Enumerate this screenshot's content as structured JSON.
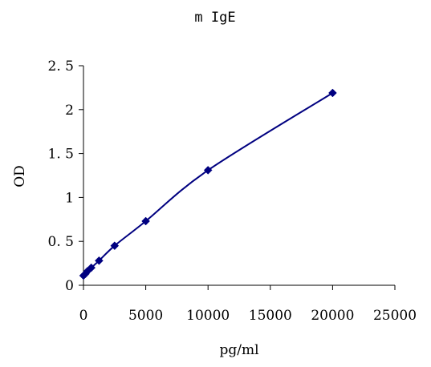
{
  "chart_data": {
    "type": "scatter",
    "title": "m IgE",
    "xlabel": "pg/ml",
    "ylabel": "OD",
    "xlim": [
      0,
      25000
    ],
    "ylim": [
      0,
      2.5
    ],
    "x_ticks": [
      0,
      5000,
      10000,
      15000,
      20000,
      25000
    ],
    "x_tick_labels": [
      "0",
      "5000",
      "10000",
      "15000",
      "20000",
      "25000"
    ],
    "y_ticks": [
      0,
      0.5,
      1,
      1.5,
      2,
      2.5
    ],
    "y_tick_labels": [
      "0",
      "0. 5",
      "1",
      "1. 5",
      "2",
      "2. 5"
    ],
    "grid": false,
    "legend": "none",
    "series": [
      {
        "x": [
          0,
          156,
          312,
          625,
          1250,
          2500,
          5000,
          10000,
          20000
        ],
        "y": [
          0.11,
          0.13,
          0.16,
          0.2,
          0.28,
          0.45,
          0.73,
          1.31,
          2.19
        ],
        "color": "#000080",
        "marker": "diamond",
        "line": "smooth"
      }
    ]
  }
}
